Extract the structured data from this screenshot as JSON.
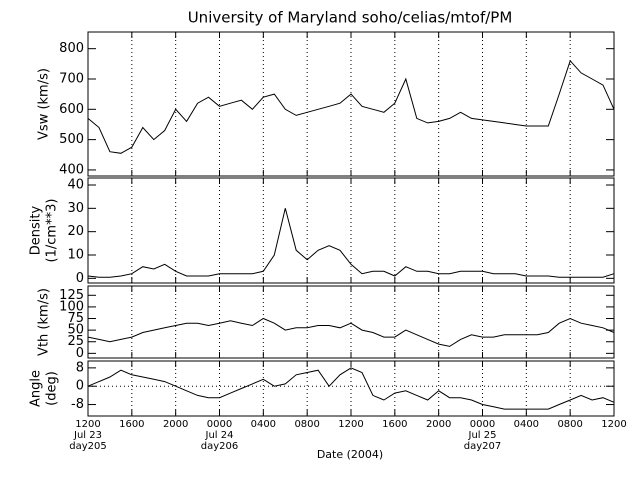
{
  "chart_data": [
    {
      "type": "line",
      "title": "University of Maryland  soho/celias/mtof/PM",
      "ylabel": "Vsw (km/s)",
      "x": [
        "2004-07-23T12:00",
        "2004-07-23T13:00",
        "2004-07-23T14:00",
        "2004-07-23T15:00",
        "2004-07-23T16:00",
        "2004-07-23T17:00",
        "2004-07-23T18:00",
        "2004-07-23T19:00",
        "2004-07-23T20:00",
        "2004-07-23T21:00",
        "2004-07-23T22:00",
        "2004-07-23T23:00",
        "2004-07-24T00:00",
        "2004-07-24T01:00",
        "2004-07-24T02:00",
        "2004-07-24T03:00",
        "2004-07-24T04:00",
        "2004-07-24T05:00",
        "2004-07-24T06:00",
        "2004-07-24T07:00",
        "2004-07-24T08:00",
        "2004-07-24T09:00",
        "2004-07-24T10:00",
        "2004-07-24T11:00",
        "2004-07-24T12:00",
        "2004-07-24T13:00",
        "2004-07-24T14:00",
        "2004-07-24T15:00",
        "2004-07-24T16:00",
        "2004-07-24T17:00",
        "2004-07-24T18:00",
        "2004-07-24T19:00",
        "2004-07-24T20:00",
        "2004-07-24T21:00",
        "2004-07-24T22:00",
        "2004-07-24T23:00",
        "2004-07-25T00:00",
        "2004-07-25T01:00",
        "2004-07-25T02:00",
        "2004-07-25T03:00",
        "2004-07-25T04:00",
        "2004-07-25T05:00",
        "2004-07-25T06:00",
        "2004-07-25T07:00",
        "2004-07-25T08:00",
        "2004-07-25T09:00",
        "2004-07-25T10:00",
        "2004-07-25T11:00",
        "2004-07-25T12:00"
      ],
      "values": [
        570,
        540,
        460,
        455,
        475,
        540,
        500,
        530,
        600,
        560,
        620,
        640,
        610,
        620,
        630,
        600,
        640,
        650,
        600,
        580,
        590,
        600,
        610,
        620,
        650,
        610,
        600,
        590,
        620,
        700,
        570,
        555,
        560,
        570,
        590,
        570,
        565,
        560,
        555,
        550,
        545,
        545,
        545,
        650,
        760,
        720,
        700,
        680,
        600
      ],
      "color": "#000000",
      "xlim": [
        "2004-07-23T12:00",
        "2004-07-25T12:00"
      ],
      "xticks": [
        "2004-07-23T12:00",
        "2004-07-23T16:00",
        "2004-07-23T20:00",
        "2004-07-24T00:00",
        "2004-07-24T04:00",
        "2004-07-24T08:00",
        "2004-07-24T12:00",
        "2004-07-24T16:00",
        "2004-07-24T20:00",
        "2004-07-25T00:00",
        "2004-07-25T04:00",
        "2004-07-25T08:00",
        "2004-07-25T12:00"
      ],
      "ylim": [
        380,
        855
      ],
      "yticks": [
        400,
        500,
        600,
        700,
        800
      ],
      "grid": true
    },
    {
      "type": "line",
      "ylabel": [
        "Density",
        "(1/cm**3)"
      ],
      "x": [
        "2004-07-23T12:00",
        "2004-07-23T13:00",
        "2004-07-23T14:00",
        "2004-07-23T15:00",
        "2004-07-23T16:00",
        "2004-07-23T17:00",
        "2004-07-23T18:00",
        "2004-07-23T19:00",
        "2004-07-23T20:00",
        "2004-07-23T21:00",
        "2004-07-23T22:00",
        "2004-07-23T23:00",
        "2004-07-24T00:00",
        "2004-07-24T01:00",
        "2004-07-24T02:00",
        "2004-07-24T03:00",
        "2004-07-24T04:00",
        "2004-07-24T05:00",
        "2004-07-24T06:00",
        "2004-07-24T07:00",
        "2004-07-24T08:00",
        "2004-07-24T09:00",
        "2004-07-24T10:00",
        "2004-07-24T11:00",
        "2004-07-24T12:00",
        "2004-07-24T13:00",
        "2004-07-24T14:00",
        "2004-07-24T15:00",
        "2004-07-24T16:00",
        "2004-07-24T17:00",
        "2004-07-24T18:00",
        "2004-07-24T19:00",
        "2004-07-24T20:00",
        "2004-07-24T21:00",
        "2004-07-24T22:00",
        "2004-07-24T23:00",
        "2004-07-25T00:00",
        "2004-07-25T01:00",
        "2004-07-25T02:00",
        "2004-07-25T03:00",
        "2004-07-25T04:00",
        "2004-07-25T05:00",
        "2004-07-25T06:00",
        "2004-07-25T07:00",
        "2004-07-25T08:00",
        "2004-07-25T09:00",
        "2004-07-25T10:00",
        "2004-07-25T11:00",
        "2004-07-25T12:00"
      ],
      "values": [
        1,
        0.5,
        0.5,
        1,
        2,
        5,
        4,
        6,
        3,
        1,
        1,
        1,
        2,
        2,
        2,
        2,
        3,
        10,
        30,
        12,
        8,
        12,
        14,
        12,
        6,
        2,
        3,
        3,
        1,
        5,
        3,
        3,
        2,
        2,
        3,
        3,
        3,
        2,
        2,
        2,
        1,
        1,
        1,
        0.5,
        0.5,
        0.5,
        0.5,
        0.5,
        2
      ],
      "color": "#000000",
      "xlim": [
        "2004-07-23T12:00",
        "2004-07-25T12:00"
      ],
      "xticks": [
        "2004-07-23T12:00",
        "2004-07-23T16:00",
        "2004-07-23T20:00",
        "2004-07-24T00:00",
        "2004-07-24T04:00",
        "2004-07-24T08:00",
        "2004-07-24T12:00",
        "2004-07-24T16:00",
        "2004-07-24T20:00",
        "2004-07-25T00:00",
        "2004-07-25T04:00",
        "2004-07-25T08:00",
        "2004-07-25T12:00"
      ],
      "ylim": [
        -2,
        43
      ],
      "yticks": [
        0,
        10,
        20,
        30,
        40
      ],
      "grid": true
    },
    {
      "type": "line",
      "ylabel": "Vth (km/s)",
      "x": [
        "2004-07-23T12:00",
        "2004-07-23T13:00",
        "2004-07-23T14:00",
        "2004-07-23T15:00",
        "2004-07-23T16:00",
        "2004-07-23T17:00",
        "2004-07-23T18:00",
        "2004-07-23T19:00",
        "2004-07-23T20:00",
        "2004-07-23T21:00",
        "2004-07-23T22:00",
        "2004-07-23T23:00",
        "2004-07-24T00:00",
        "2004-07-24T01:00",
        "2004-07-24T02:00",
        "2004-07-24T03:00",
        "2004-07-24T04:00",
        "2004-07-24T05:00",
        "2004-07-24T06:00",
        "2004-07-24T07:00",
        "2004-07-24T08:00",
        "2004-07-24T09:00",
        "2004-07-24T10:00",
        "2004-07-24T11:00",
        "2004-07-24T12:00",
        "2004-07-24T13:00",
        "2004-07-24T14:00",
        "2004-07-24T15:00",
        "2004-07-24T16:00",
        "2004-07-24T17:00",
        "2004-07-24T18:00",
        "2004-07-24T19:00",
        "2004-07-24T20:00",
        "2004-07-24T21:00",
        "2004-07-24T22:00",
        "2004-07-24T23:00",
        "2004-07-25T00:00",
        "2004-07-25T01:00",
        "2004-07-25T02:00",
        "2004-07-25T03:00",
        "2004-07-25T04:00",
        "2004-07-25T05:00",
        "2004-07-25T06:00",
        "2004-07-25T07:00",
        "2004-07-25T08:00",
        "2004-07-25T09:00",
        "2004-07-25T10:00",
        "2004-07-25T11:00",
        "2004-07-25T12:00"
      ],
      "values": [
        35,
        30,
        25,
        30,
        35,
        45,
        50,
        55,
        60,
        65,
        65,
        60,
        65,
        70,
        65,
        60,
        75,
        65,
        50,
        55,
        55,
        60,
        60,
        55,
        65,
        50,
        45,
        35,
        35,
        50,
        40,
        30,
        20,
        15,
        30,
        40,
        35,
        35,
        40,
        40,
        40,
        40,
        45,
        65,
        75,
        65,
        60,
        55,
        45
      ],
      "color": "#000000",
      "xlim": [
        "2004-07-23T12:00",
        "2004-07-25T12:00"
      ],
      "xticks": [
        "2004-07-23T12:00",
        "2004-07-23T16:00",
        "2004-07-23T20:00",
        "2004-07-24T00:00",
        "2004-07-24T04:00",
        "2004-07-24T08:00",
        "2004-07-24T12:00",
        "2004-07-24T16:00",
        "2004-07-24T20:00",
        "2004-07-25T00:00",
        "2004-07-25T04:00",
        "2004-07-25T08:00",
        "2004-07-25T12:00"
      ],
      "ylim": [
        -10,
        145
      ],
      "yticks": [
        0,
        25,
        50,
        75,
        100,
        125
      ],
      "grid": true
    },
    {
      "type": "line",
      "ylabel": [
        "Angle",
        "(deg)"
      ],
      "xlabel": "Date (2004)",
      "x": [
        "2004-07-23T12:00",
        "2004-07-23T13:00",
        "2004-07-23T14:00",
        "2004-07-23T15:00",
        "2004-07-23T16:00",
        "2004-07-23T17:00",
        "2004-07-23T18:00",
        "2004-07-23T19:00",
        "2004-07-23T20:00",
        "2004-07-23T21:00",
        "2004-07-23T22:00",
        "2004-07-23T23:00",
        "2004-07-24T00:00",
        "2004-07-24T01:00",
        "2004-07-24T02:00",
        "2004-07-24T03:00",
        "2004-07-24T04:00",
        "2004-07-24T05:00",
        "2004-07-24T06:00",
        "2004-07-24T07:00",
        "2004-07-24T08:00",
        "2004-07-24T09:00",
        "2004-07-24T10:00",
        "2004-07-24T11:00",
        "2004-07-24T12:00",
        "2004-07-24T13:00",
        "2004-07-24T14:00",
        "2004-07-24T15:00",
        "2004-07-24T16:00",
        "2004-07-24T17:00",
        "2004-07-24T18:00",
        "2004-07-24T19:00",
        "2004-07-24T20:00",
        "2004-07-24T21:00",
        "2004-07-24T22:00",
        "2004-07-24T23:00",
        "2004-07-25T00:00",
        "2004-07-25T01:00",
        "2004-07-25T02:00",
        "2004-07-25T03:00",
        "2004-07-25T04:00",
        "2004-07-25T05:00",
        "2004-07-25T06:00",
        "2004-07-25T07:00",
        "2004-07-25T08:00",
        "2004-07-25T09:00",
        "2004-07-25T10:00",
        "2004-07-25T11:00",
        "2004-07-25T12:00"
      ],
      "values": [
        0,
        2,
        4,
        7,
        5,
        4,
        3,
        2,
        0,
        -2,
        -4,
        -5,
        -5,
        -3,
        -1,
        1,
        3,
        0,
        1,
        5,
        6,
        7,
        0,
        5,
        8,
        6,
        -4,
        -6,
        -3,
        -2,
        -4,
        -6,
        -2,
        -5,
        -5,
        -6,
        -8,
        -9,
        -10,
        -10,
        -10,
        -10,
        -10,
        -8,
        -6,
        -4,
        -6,
        -5,
        -7
      ],
      "color": "#000000",
      "xlim": [
        "2004-07-23T12:00",
        "2004-07-25T12:00"
      ],
      "xticks": [
        {
          "value": "2004-07-23T12:00",
          "label": "1200"
        },
        {
          "value": "2004-07-23T16:00",
          "label": "1600"
        },
        {
          "value": "2004-07-23T20:00",
          "label": "2000"
        },
        {
          "value": "2004-07-24T00:00",
          "label": "0000"
        },
        {
          "value": "2004-07-24T04:00",
          "label": "0400"
        },
        {
          "value": "2004-07-24T08:00",
          "label": "0800"
        },
        {
          "value": "2004-07-24T12:00",
          "label": "1200"
        },
        {
          "value": "2004-07-24T16:00",
          "label": "1600"
        },
        {
          "value": "2004-07-24T20:00",
          "label": "2000"
        },
        {
          "value": "2004-07-25T00:00",
          "label": "0000"
        },
        {
          "value": "2004-07-25T04:00",
          "label": "0400"
        },
        {
          "value": "2004-07-25T08:00",
          "label": "0800"
        },
        {
          "value": "2004-07-25T12:00",
          "label": "1200"
        }
      ],
      "xtick_dates": [
        {
          "value": "2004-07-23T12:00",
          "label": "Jul 23"
        },
        {
          "value": "2004-07-24T00:00",
          "label": "Jul 24"
        },
        {
          "value": "2004-07-25T00:00",
          "label": "Jul 25"
        }
      ],
      "xtick_days": [
        {
          "value": "2004-07-23T12:00",
          "label": "day205"
        },
        {
          "value": "2004-07-24T00:00",
          "label": "day206"
        },
        {
          "value": "2004-07-25T00:00",
          "label": "day207"
        }
      ],
      "ylim": [
        -13,
        11
      ],
      "yticks": [
        -8,
        0,
        8
      ],
      "grid": true,
      "zero_line": true
    }
  ]
}
